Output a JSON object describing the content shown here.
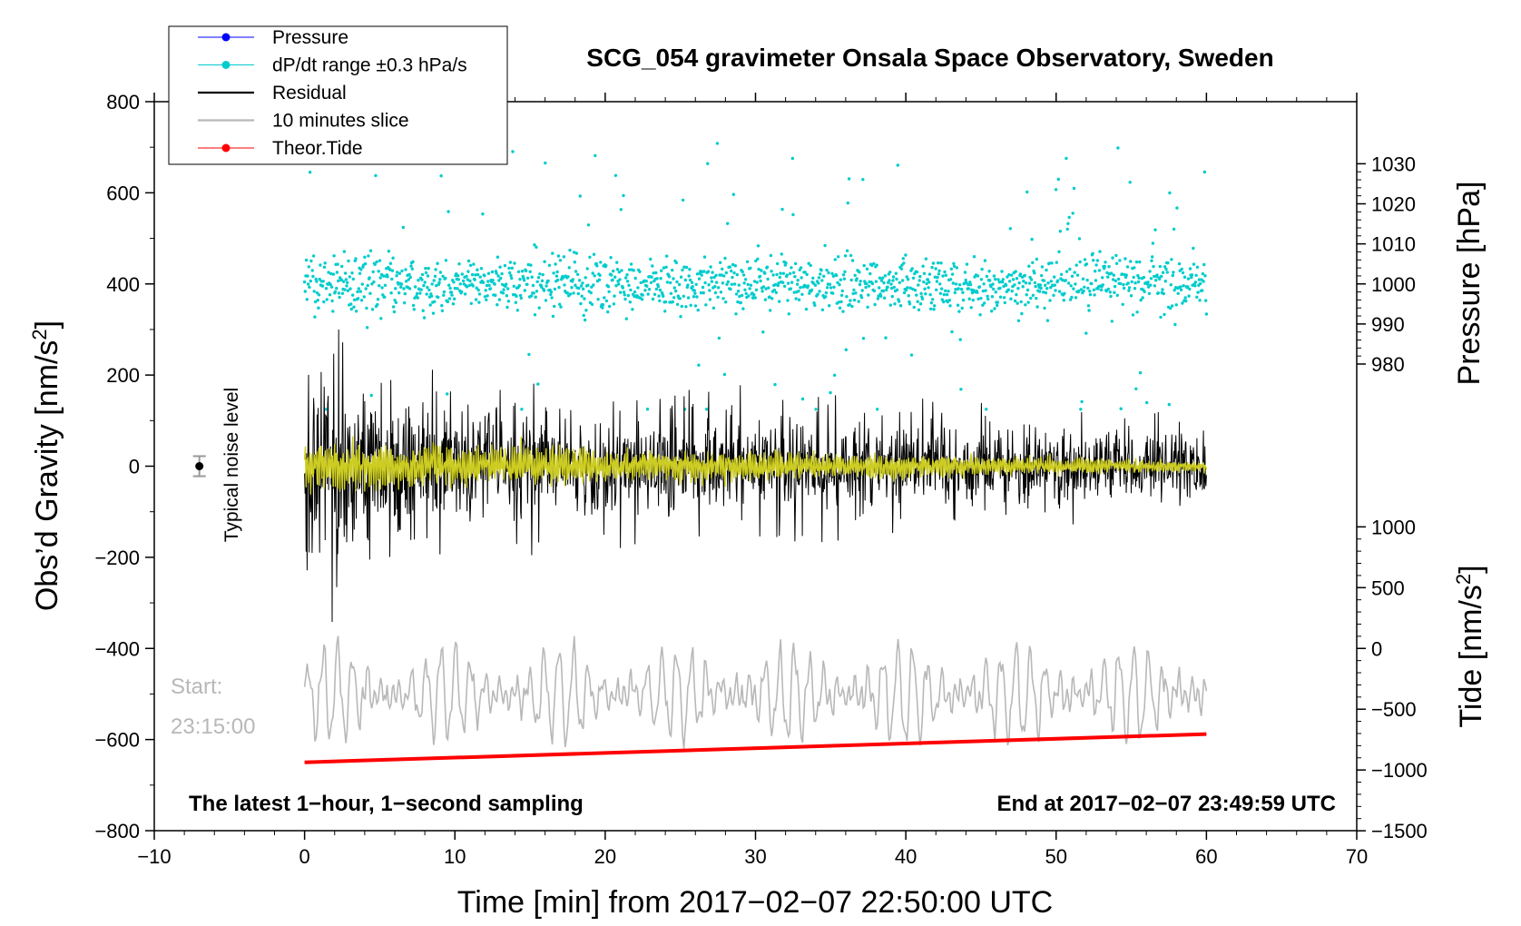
{
  "chart_data": {
    "type": "line",
    "title": "SCG_054 gravimeter Onsala Space Observatory, Sweden",
    "xlabel": "Time [min] from 2017−02−07 22:50:00 UTC",
    "ylabel_left": "Obs’d Gravity [nm/s",
    "ylabel_left_sup": "2",
    "ylabel_left_close": "]",
    "ylabel_right_pressure": "Pressure [hPa]",
    "ylabel_right_tide": "Tide [nm/s",
    "ylabel_right_tide_sup": "2",
    "ylabel_right_tide_close": "]",
    "xlim": [
      -10,
      70
    ],
    "ylim_left": [
      -800,
      800
    ],
    "pressure_range": [
      980,
      1030
    ],
    "tide_range": [
      -1500,
      1000
    ],
    "x_ticks": [
      "−10",
      "0",
      "10",
      "20",
      "30",
      "40",
      "50",
      "60",
      "70"
    ],
    "x_tick_values": [
      -10,
      0,
      10,
      20,
      30,
      40,
      50,
      60,
      70
    ],
    "y_left_ticks": [
      "800",
      "600",
      "400",
      "200",
      "0",
      "−200",
      "−400",
      "−600",
      "−800"
    ],
    "y_left_tick_values": [
      800,
      600,
      400,
      200,
      0,
      -200,
      -400,
      -600,
      -800
    ],
    "pressure_ticks": [
      "1030",
      "1020",
      "1010",
      "1000",
      "990",
      "980"
    ],
    "pressure_tick_values": [
      1030,
      1020,
      1010,
      1000,
      990,
      980
    ],
    "tide_ticks": [
      "1000",
      "500",
      "0",
      "−500",
      "−1000",
      "−1500"
    ],
    "tide_tick_values": [
      1000,
      500,
      0,
      -500,
      -1000,
      -1500
    ],
    "legend": [
      {
        "label": "Pressure",
        "color": "#0000ff",
        "marker": "dot"
      },
      {
        "label": "dP/dt range ±0.3 hPa/s",
        "color": "#00cccc",
        "marker": "dot"
      },
      {
        "label": "Residual",
        "color": "#000000",
        "marker": "line"
      },
      {
        "label": "10 minutes slice",
        "color": "#b8b8b8",
        "marker": "line"
      },
      {
        "label": "Theor.Tide",
        "color": "#ff0000",
        "marker": "dot"
      }
    ],
    "series": [
      {
        "name": "dP/dt range ±0.3 hPa/s",
        "color": "#00cccc",
        "kind": "scatter",
        "x_range": [
          0,
          60
        ],
        "center_y": 400,
        "typical_spread": 40,
        "outlier_max": 760,
        "outlier_min": 125
      },
      {
        "name": "Residual",
        "color": "#000000",
        "kind": "line",
        "x_range": [
          0,
          60
        ],
        "center_y": 0,
        "amplitude_start": 320,
        "amplitude_mid": 170,
        "amplitude_end": 90
      },
      {
        "name": "Residual (smoothed)",
        "color": "#cccc22",
        "kind": "line",
        "x_range": [
          0,
          60
        ],
        "center_y": 0,
        "amplitude_start": 65,
        "amplitude_end": 15
      },
      {
        "name": "10 minutes slice",
        "color": "#b8b8b8",
        "kind": "line",
        "x_range": [
          0,
          60
        ],
        "center_y": -500,
        "amplitude": 100
      },
      {
        "name": "Theor.Tide",
        "color": "#ff0000",
        "kind": "line",
        "x": [
          0,
          60
        ],
        "y": [
          -650,
          -588
        ]
      }
    ],
    "noise_level": {
      "x": -7,
      "y": 0,
      "error": 22,
      "label": "Typical noise level"
    },
    "start_label_1": "Start:",
    "start_label_2": "23:15:00",
    "footer_left": "The latest 1−hour, 1−second sampling",
    "footer_right": "End at 2017−02−07 23:49:59 UTC"
  }
}
